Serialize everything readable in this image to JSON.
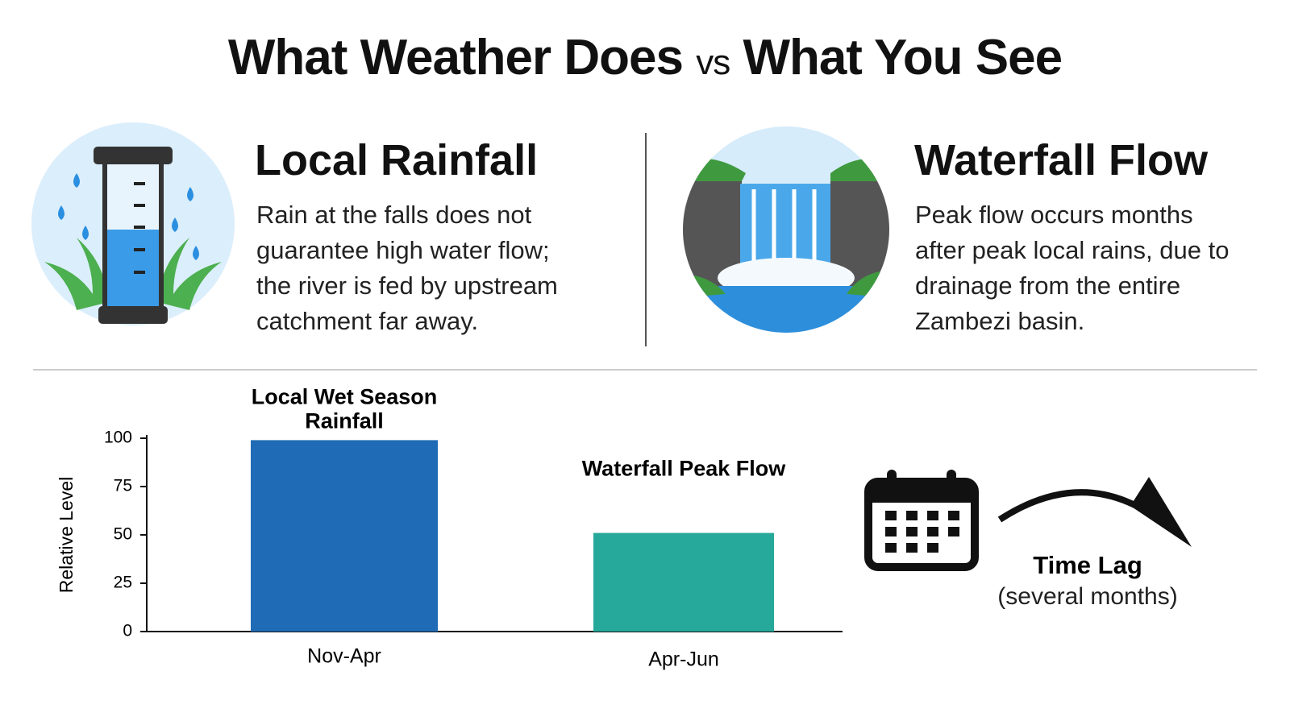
{
  "header": {
    "title_left": "What Weather Does",
    "vs": "vs",
    "title_right": "What You See"
  },
  "panels": [
    {
      "heading": "Local Rainfall",
      "lines": [
        "Rain at the falls does not",
        "guarantee high water flow;",
        "the river is fed by upstream",
        "catchment far away."
      ]
    },
    {
      "heading": "Waterfall Flow",
      "lines": [
        "Peak flow occurs months",
        "after peak local rains, due to",
        "drainage from the entire",
        "Zambezi basin."
      ]
    }
  ],
  "chart_data": {
    "type": "bar",
    "y_label": "Relative Level",
    "categories": [
      "Nov-Apr",
      "Apr-Jun"
    ],
    "values": [
      99,
      51
    ],
    "bar_labels": [
      "Local Wet Season Rainfall",
      "Waterfall Peak Flow"
    ],
    "colors": [
      "#1f6bb5",
      "#26a99a"
    ],
    "ylim": [
      0,
      100
    ],
    "yticks": [
      0,
      25,
      50,
      75,
      100
    ]
  },
  "time_lag": {
    "label": "Time Lag",
    "note": "(several months)"
  }
}
